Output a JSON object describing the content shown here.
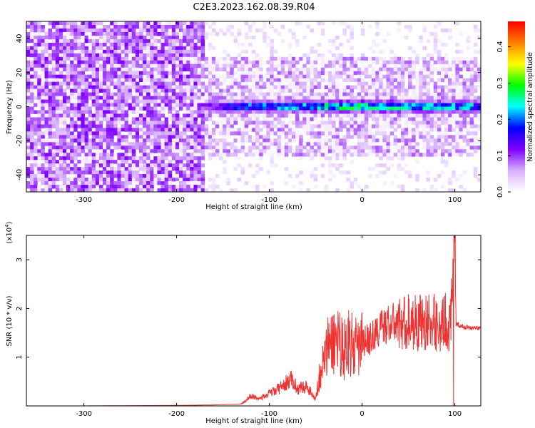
{
  "title": "C2E3.2023.162.08.39.R04",
  "chart_data": [
    {
      "type": "heatmap",
      "xlabel": "Height of straight line (km)",
      "ylabel": "Frequency (Hz)",
      "xlim": [
        -362,
        128
      ],
      "ylim": [
        -50,
        50
      ],
      "x_ticks": [
        -300,
        -200,
        -100,
        0,
        100
      ],
      "y_ticks": [
        -40,
        -20,
        0,
        20,
        40
      ],
      "colorbar": {
        "label": "Normalized spectral amplitude",
        "range": [
          0,
          0.47
        ],
        "ticks": [
          0.0,
          0.1,
          0.2,
          0.3,
          0.4
        ],
        "colors": [
          "#ffffff",
          "#d8b0ff",
          "#8000ff",
          "#0000ff",
          "#00ffff",
          "#00ff00",
          "#ffff00",
          "#ff8000",
          "#ff0000"
        ]
      },
      "features": {
        "broadband_noise_x": [
          -362,
          -170
        ],
        "band_center_hz": 0,
        "band_strength": [
          {
            "x": -170,
            "amp": 0.12
          },
          {
            "x": -140,
            "amp": 0.22
          },
          {
            "x": -100,
            "amp": 0.24
          },
          {
            "x": -60,
            "amp": 0.26
          },
          {
            "x": -20,
            "amp": 0.32
          },
          {
            "x": 0,
            "amp": 0.3
          },
          {
            "x": 50,
            "amp": 0.28
          },
          {
            "x": 100,
            "amp": 0.27
          },
          {
            "x": 128,
            "amp": 0.26
          }
        ]
      }
    },
    {
      "type": "line",
      "xlabel": "Height of straight line (km)",
      "ylabel": "SNR (10 * v/v)",
      "yscale_label": "(x10^4)",
      "xlim": [
        -362,
        128
      ],
      "ylim": [
        0,
        3.5
      ],
      "x_ticks": [
        -300,
        -200,
        -100,
        0,
        100
      ],
      "y_ticks": [
        1,
        2,
        3
      ],
      "color": "#ee3333",
      "series": [
        {
          "x": [
            -362,
            -300,
            -200,
            -160,
            -130,
            -120,
            -110,
            -100,
            -90,
            -80,
            -75,
            -70,
            -60,
            -50,
            -45,
            -40,
            -35,
            -30,
            -25,
            -20,
            -15,
            -10,
            -5,
            0,
            10,
            20,
            30,
            40,
            50,
            60,
            70,
            75,
            80,
            85,
            90,
            95,
            98,
            100,
            102,
            105,
            110,
            120,
            128
          ],
          "values": [
            0.0,
            0.0,
            0.01,
            0.02,
            0.04,
            0.2,
            0.15,
            0.25,
            0.35,
            0.5,
            0.55,
            0.35,
            0.4,
            0.15,
            0.7,
            1.0,
            1.3,
            1.3,
            1.45,
            1.1,
            1.4,
            1.2,
            1.15,
            1.3,
            1.4,
            1.6,
            1.7,
            1.7,
            1.72,
            1.72,
            1.72,
            1.7,
            1.72,
            1.6,
            1.75,
            1.65,
            2.4,
            3.3,
            1.7,
            1.65,
            1.62,
            1.6,
            1.6
          ]
        }
      ]
    }
  ]
}
